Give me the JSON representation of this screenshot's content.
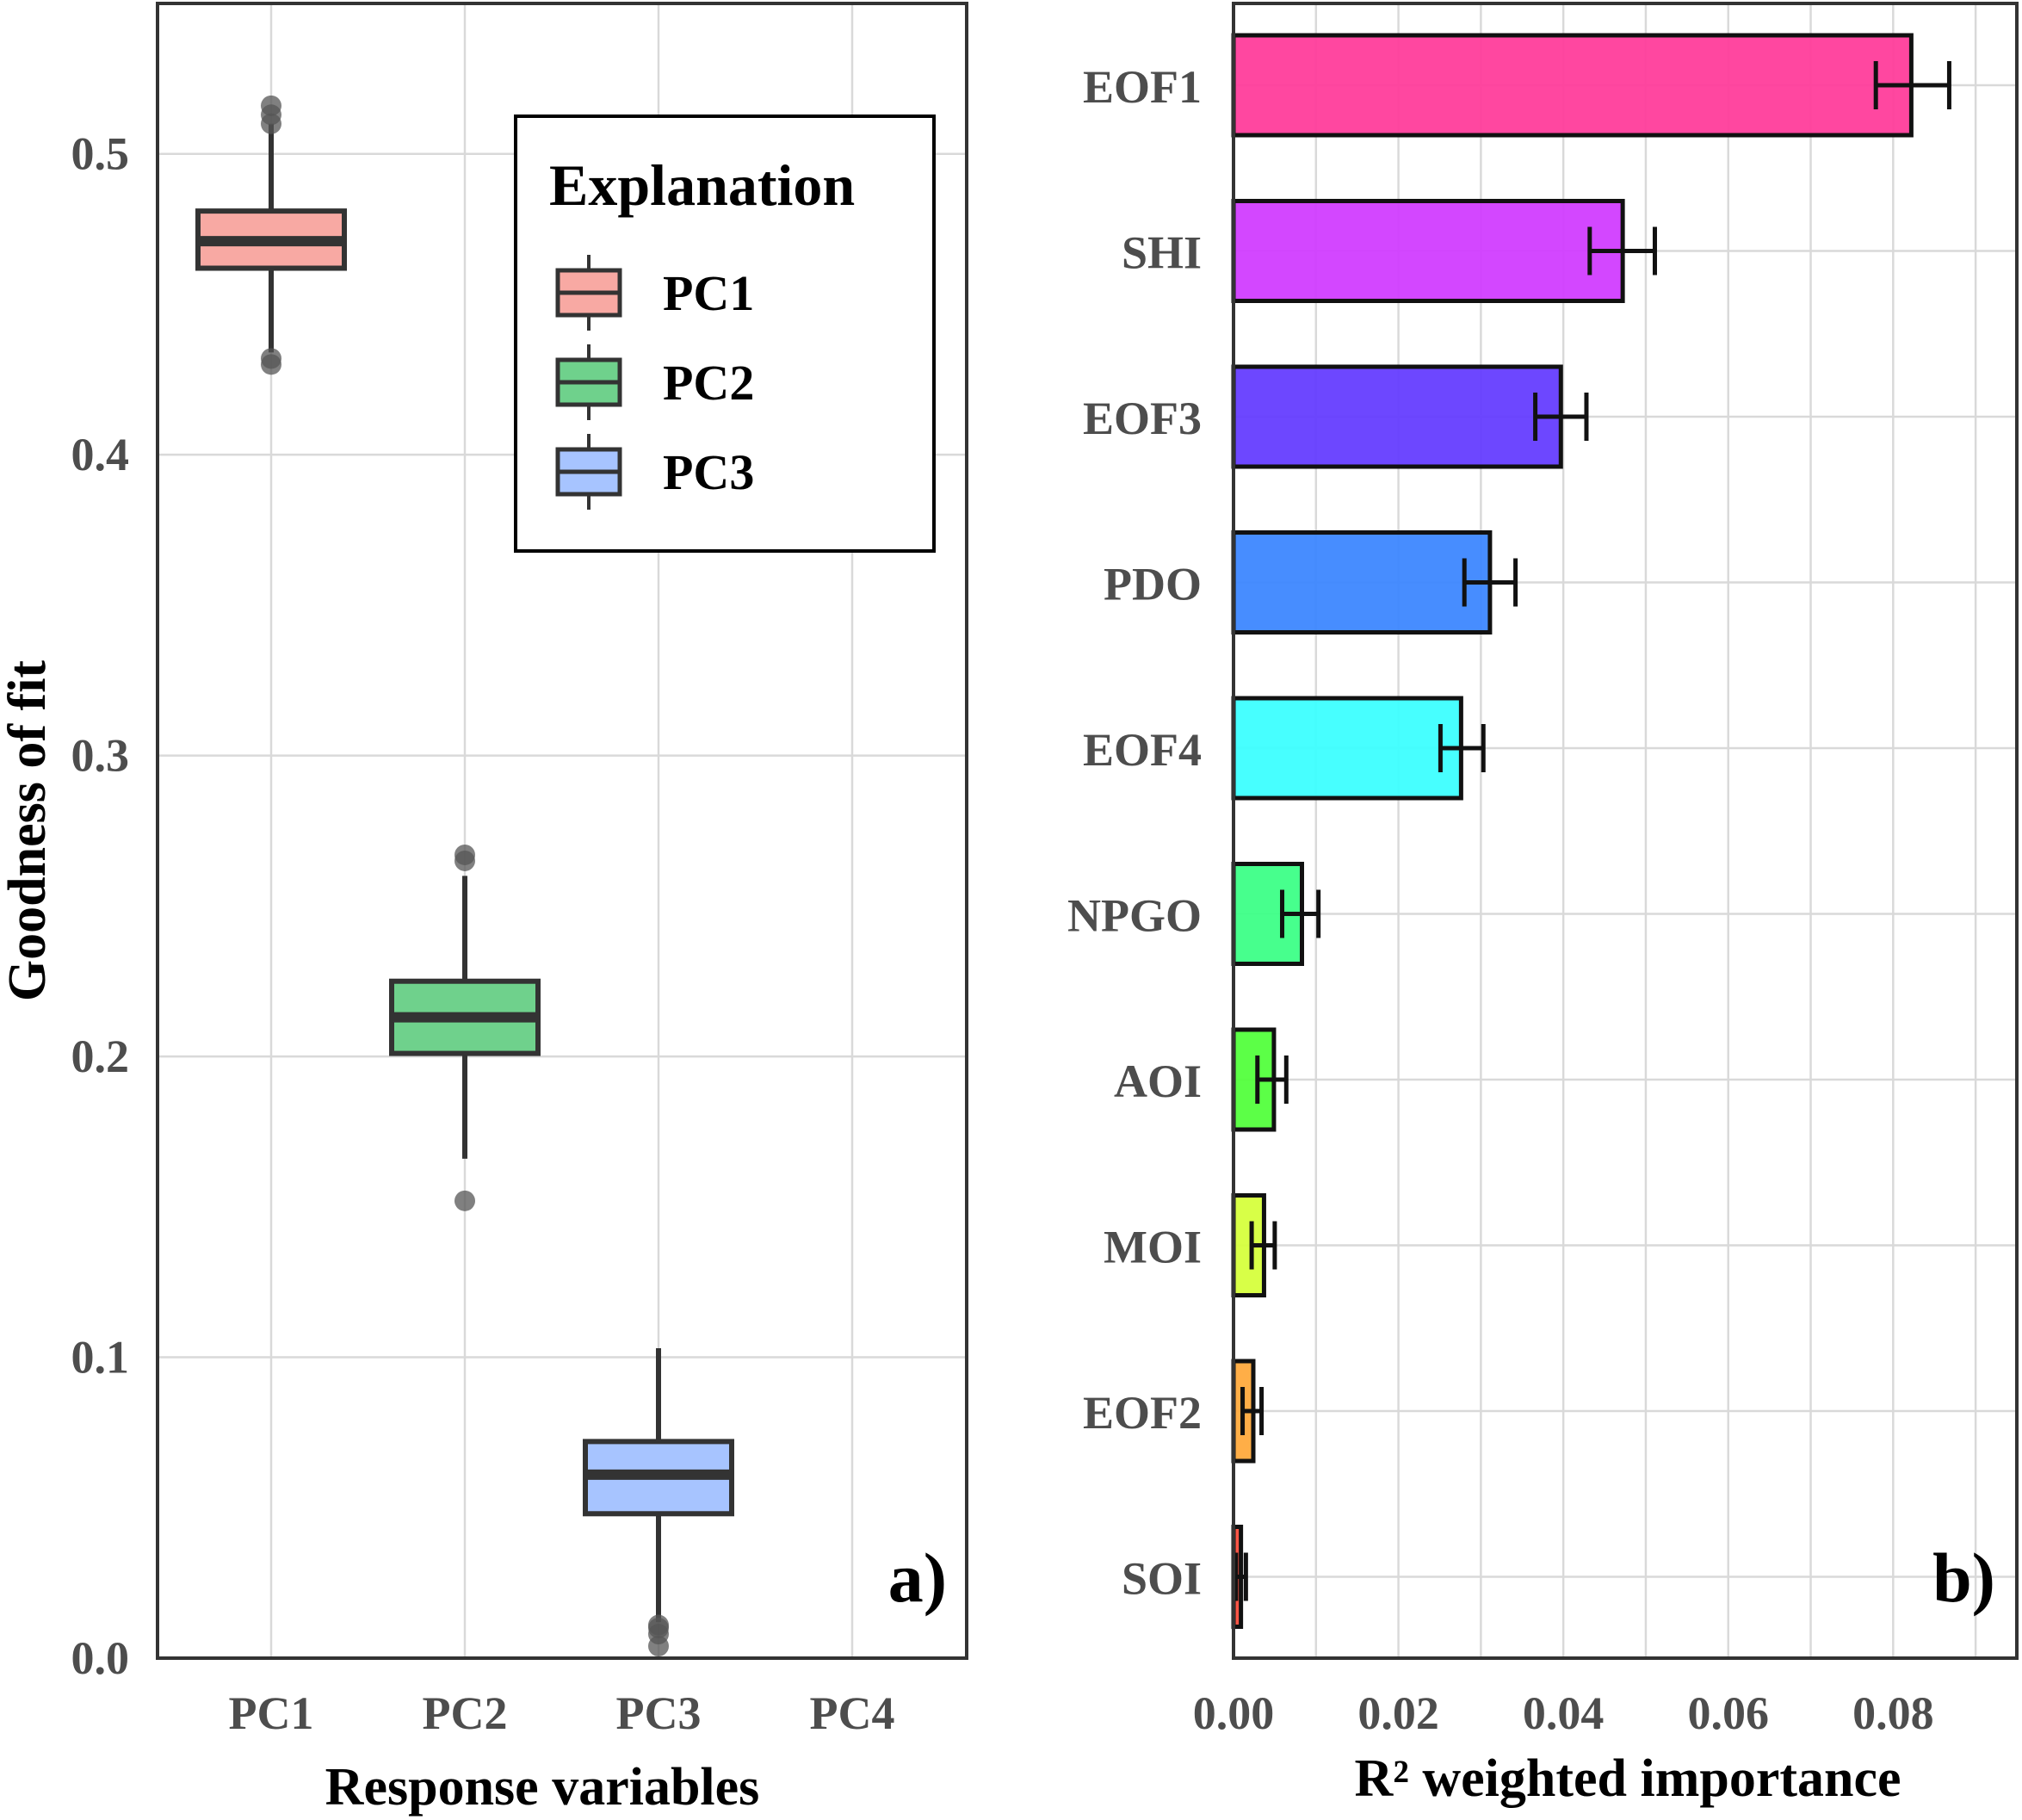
{
  "chart_data": [
    {
      "type": "box",
      "panel_label": "a)",
      "xlabel": "Response variables",
      "ylabel": "Goodness of fit",
      "categories": [
        "PC1",
        "PC2",
        "PC3",
        "PC4"
      ],
      "ylim": [
        0.0,
        0.55
      ],
      "yticks": [
        0.0,
        0.1,
        0.2,
        0.3,
        0.4,
        0.5
      ],
      "ytick_labels": [
        "0.0",
        "0.1",
        "0.2",
        "0.3",
        "0.4",
        "0.5"
      ],
      "legend": {
        "title": "Explanation",
        "position": "top-right",
        "entries": [
          "PC1",
          "PC2",
          "PC3"
        ]
      },
      "series": [
        {
          "name": "PC1",
          "category": "PC1",
          "color": "#f8a9a3",
          "whisker_low": 0.434,
          "q1": 0.462,
          "median": 0.471,
          "q3": 0.481,
          "whisker_high": 0.51,
          "outliers": [
            0.43,
            0.432,
            0.51,
            0.513,
            0.516
          ]
        },
        {
          "name": "PC2",
          "category": "PC2",
          "color": "#6fd18c",
          "whisker_low": 0.166,
          "q1": 0.201,
          "median": 0.213,
          "q3": 0.225,
          "whisker_high": 0.26,
          "outliers": [
            0.152,
            0.265,
            0.267
          ]
        },
        {
          "name": "PC3",
          "category": "PC3",
          "color": "#a7c4ff",
          "whisker_low": 0.012,
          "q1": 0.048,
          "median": 0.061,
          "q3": 0.072,
          "whisker_high": 0.103,
          "outliers": [
            0.004,
            0.008,
            0.01,
            0.011
          ]
        }
      ]
    },
    {
      "type": "bar",
      "orientation": "horizontal",
      "panel_label": "b)",
      "xlabel": "R² weighted importance",
      "ylabel": "",
      "xlim": [
        0.0,
        0.095
      ],
      "xticks": [
        0.0,
        0.02,
        0.04,
        0.06,
        0.08
      ],
      "xtick_labels": [
        "0.00",
        "0.02",
        "0.04",
        "0.06",
        "0.08"
      ],
      "categories": [
        "EOF1",
        "SHI",
        "EOF3",
        "PDO",
        "EOF4",
        "NPGO",
        "AOI",
        "MOI",
        "EOF2",
        "SOI"
      ],
      "values": [
        0.0822,
        0.0472,
        0.0397,
        0.0311,
        0.0276,
        0.0083,
        0.0049,
        0.0037,
        0.0024,
        0.0009
      ],
      "error_low": [
        0.0779,
        0.0432,
        0.0366,
        0.028,
        0.0251,
        0.0059,
        0.0029,
        0.0022,
        0.0011,
        0.0003
      ],
      "error_high": [
        0.0868,
        0.0511,
        0.0428,
        0.0342,
        0.0303,
        0.0103,
        0.0064,
        0.005,
        0.0034,
        0.0015
      ],
      "colors": [
        "#ff3d9b",
        "#d13dff",
        "#653dff",
        "#3d87ff",
        "#3dffff",
        "#3dff87",
        "#53ff3d",
        "#d6ff3d",
        "#ffaa3d",
        "#ff4d3d"
      ]
    }
  ]
}
